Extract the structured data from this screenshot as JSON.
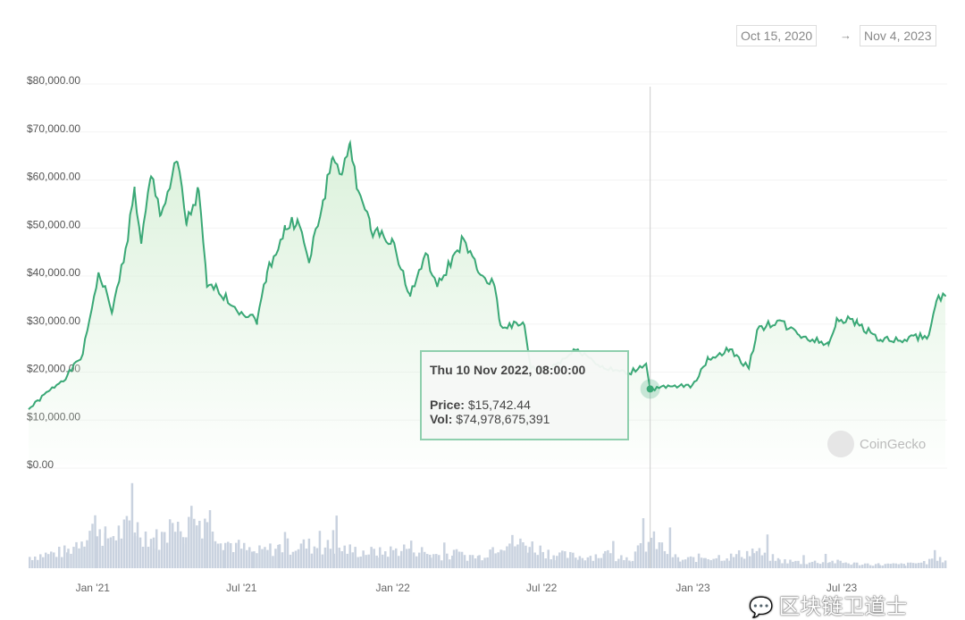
{
  "date_range": {
    "from": "Oct 15, 2020",
    "arrow": "→",
    "to": "Nov 4, 2023"
  },
  "tooltip": {
    "date": "Thu 10 Nov 2022, 08:00:00",
    "price_label": "Price:",
    "price": "$15,742.44",
    "vol_label": "Vol:",
    "vol": "$74,978,675,391",
    "hover_date": "2022-11-10",
    "hover_price": 15742.44
  },
  "brand": "CoinGecko",
  "watermark": "区块链卫道士",
  "colors": {
    "line": "#3aa876",
    "fill": "#d8f0d8",
    "volume": "#c9d2df",
    "crosshair": "#cccccc"
  },
  "chart_data": {
    "type": "line",
    "title": "",
    "xlim": [
      "2020-10-15",
      "2023-11-04"
    ],
    "ylim": [
      0,
      80000
    ],
    "yticks": [
      {
        "v": 0,
        "label": "$0.00"
      },
      {
        "v": 10000,
        "label": "$10,000.00"
      },
      {
        "v": 20000,
        "label": "$20,000.00"
      },
      {
        "v": 30000,
        "label": "$30,000.00"
      },
      {
        "v": 40000,
        "label": "$40,000.00"
      },
      {
        "v": 50000,
        "label": "$50,000.00"
      },
      {
        "v": 60000,
        "label": "$60,000.00"
      },
      {
        "v": 70000,
        "label": "$70,000.00"
      },
      {
        "v": 80000,
        "label": "$80,000.00"
      }
    ],
    "xticks": [
      {
        "d": "2021-01-01",
        "label": "Jan '21"
      },
      {
        "d": "2021-07-01",
        "label": "Jul '21"
      },
      {
        "d": "2022-01-01",
        "label": "Jan '22"
      },
      {
        "d": "2022-07-01",
        "label": "Jul '22"
      },
      {
        "d": "2023-01-01",
        "label": "Jan '23"
      },
      {
        "d": "2023-07-01",
        "label": "Jul '23"
      }
    ],
    "series": [
      {
        "name": "Price (USD)",
        "points": [
          [
            "2020-10-15",
            11500
          ],
          [
            "2020-11-10",
            15500
          ],
          [
            "2020-12-01",
            18500
          ],
          [
            "2020-12-20",
            23000
          ],
          [
            "2021-01-08",
            40000
          ],
          [
            "2021-01-25",
            32000
          ],
          [
            "2021-02-10",
            45000
          ],
          [
            "2021-02-21",
            57000
          ],
          [
            "2021-03-01",
            46000
          ],
          [
            "2021-03-13",
            60000
          ],
          [
            "2021-03-25",
            52000
          ],
          [
            "2021-04-14",
            63000
          ],
          [
            "2021-04-25",
            50000
          ],
          [
            "2021-05-10",
            57000
          ],
          [
            "2021-05-20",
            37000
          ],
          [
            "2021-06-01",
            37000
          ],
          [
            "2021-06-20",
            33000
          ],
          [
            "2021-07-20",
            30000
          ],
          [
            "2021-08-01",
            40000
          ],
          [
            "2021-08-23",
            49000
          ],
          [
            "2021-09-07",
            51000
          ],
          [
            "2021-09-21",
            42000
          ],
          [
            "2021-10-08",
            55000
          ],
          [
            "2021-10-20",
            64000
          ],
          [
            "2021-11-01",
            61000
          ],
          [
            "2021-11-10",
            67000
          ],
          [
            "2021-11-20",
            57000
          ],
          [
            "2021-12-05",
            49000
          ],
          [
            "2021-12-31",
            47000
          ],
          [
            "2022-01-22",
            35000
          ],
          [
            "2022-02-10",
            44000
          ],
          [
            "2022-02-24",
            37000
          ],
          [
            "2022-03-28",
            47000
          ],
          [
            "2022-04-15",
            40000
          ],
          [
            "2022-05-05",
            37000
          ],
          [
            "2022-05-12",
            29000
          ],
          [
            "2022-06-10",
            29000
          ],
          [
            "2022-06-18",
            20000
          ],
          [
            "2022-07-10",
            20000
          ],
          [
            "2022-08-14",
            24000
          ],
          [
            "2022-09-15",
            20000
          ],
          [
            "2022-10-15",
            19000
          ],
          [
            "2022-11-05",
            21000
          ],
          [
            "2022-11-10",
            15742
          ],
          [
            "2022-12-31",
            16500
          ],
          [
            "2023-01-20",
            22000
          ],
          [
            "2023-02-15",
            24000
          ],
          [
            "2023-03-10",
            20000
          ],
          [
            "2023-03-20",
            28000
          ],
          [
            "2023-04-14",
            30000
          ],
          [
            "2023-05-10",
            27000
          ],
          [
            "2023-06-15",
            25000
          ],
          [
            "2023-06-25",
            30500
          ],
          [
            "2023-07-20",
            29500
          ],
          [
            "2023-08-17",
            26000
          ],
          [
            "2023-09-10",
            25800
          ],
          [
            "2023-10-15",
            27000
          ],
          [
            "2023-10-24",
            34000
          ],
          [
            "2023-11-04",
            35000
          ]
        ]
      },
      {
        "name": "Volume (B USD)",
        "points": [
          [
            "2020-10-15",
            30
          ],
          [
            "2020-12-01",
            45
          ],
          [
            "2021-01-05",
            120
          ],
          [
            "2021-01-15",
            80
          ],
          [
            "2021-02-20",
            110
          ],
          [
            "2021-03-15",
            75
          ],
          [
            "2021-04-20",
            100
          ],
          [
            "2021-05-19",
            140
          ],
          [
            "2021-06-10",
            70
          ],
          [
            "2021-07-15",
            40
          ],
          [
            "2021-08-15",
            55
          ],
          [
            "2021-09-10",
            60
          ],
          [
            "2021-10-20",
            55
          ],
          [
            "2021-11-15",
            45
          ],
          [
            "2021-12-15",
            40
          ],
          [
            "2022-01-22",
            55
          ],
          [
            "2022-02-15",
            35
          ],
          [
            "2022-03-15",
            35
          ],
          [
            "2022-04-15",
            30
          ],
          [
            "2022-05-12",
            70
          ],
          [
            "2022-06-15",
            60
          ],
          [
            "2022-07-15",
            35
          ],
          [
            "2022-08-15",
            30
          ],
          [
            "2022-09-15",
            35
          ],
          [
            "2022-10-15",
            25
          ],
          [
            "2022-11-10",
            75
          ],
          [
            "2022-12-15",
            20
          ],
          [
            "2023-01-15",
            30
          ],
          [
            "2023-02-15",
            30
          ],
          [
            "2023-03-15",
            45
          ],
          [
            "2023-04-15",
            20
          ],
          [
            "2023-05-15",
            15
          ],
          [
            "2023-06-15",
            18
          ],
          [
            "2023-07-15",
            12
          ],
          [
            "2023-08-15",
            10
          ],
          [
            "2023-09-15",
            10
          ],
          [
            "2023-10-24",
            20
          ],
          [
            "2023-11-04",
            25
          ]
        ]
      }
    ],
    "vol_max": 140
  }
}
